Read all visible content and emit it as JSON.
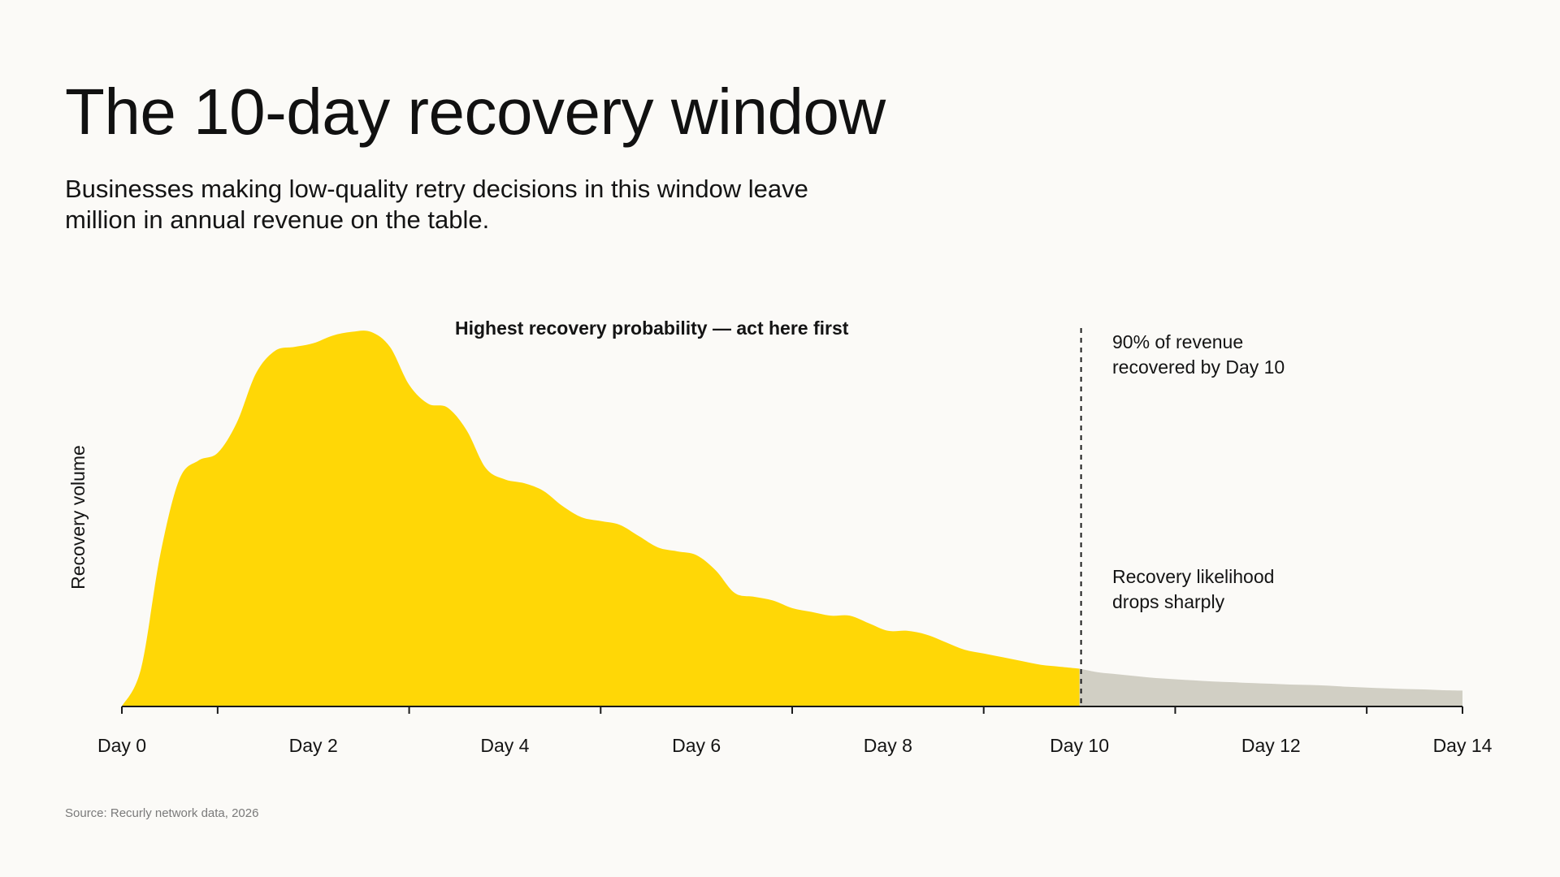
{
  "header": {
    "title": "The 10-day recovery window",
    "subtitle": "Businesses making low-quality retry decisions in this window leave million in annual revenue on the table."
  },
  "footer": {
    "source": "Source: Recurly network data, 2026"
  },
  "chart_data": {
    "type": "area",
    "title": "The 10-day recovery window",
    "xlabel": "",
    "ylabel": "Recovery volume",
    "x_ticks": [
      0,
      1,
      3,
      5,
      7,
      9,
      11,
      13,
      14
    ],
    "x_tick_labels": [
      {
        "x": 0,
        "label": "Day 0"
      },
      {
        "x": 2,
        "label": "Day 2"
      },
      {
        "x": 4,
        "label": "Day 4"
      },
      {
        "x": 6,
        "label": "Day 6"
      },
      {
        "x": 8,
        "label": "Day 8"
      },
      {
        "x": 10,
        "label": "Day 10"
      },
      {
        "x": 12,
        "label": "Day 12"
      },
      {
        "x": 14,
        "label": "Day 14"
      }
    ],
    "xlim": [
      0,
      14
    ],
    "ylim": [
      0,
      100
    ],
    "grid": false,
    "series": [
      {
        "x": [
          0,
          0.2,
          0.4,
          0.6,
          0.8,
          1.0,
          1.2,
          1.4,
          1.6,
          1.8,
          2.0,
          2.2,
          2.4,
          2.6,
          2.8,
          3.0,
          3.2,
          3.4,
          3.6,
          3.8,
          4.0,
          4.2,
          4.4,
          4.6,
          4.8,
          5.0,
          5.2,
          5.4,
          5.6,
          5.8,
          6.0,
          6.2,
          6.4,
          6.6,
          6.8,
          7.0,
          7.2,
          7.4,
          7.6,
          7.8,
          8.0,
          8.2,
          8.4,
          8.6,
          8.8,
          9.0,
          9.2,
          9.4,
          9.6,
          9.8,
          10.0,
          10.2,
          10.4,
          10.6,
          10.8,
          11.0,
          11.2,
          11.4,
          11.6,
          11.8,
          12.0,
          12.2,
          12.4,
          12.6,
          12.8,
          13.0,
          13.2,
          13.4,
          13.6,
          13.8,
          14.0
        ],
        "y": [
          0,
          10,
          40,
          60,
          65,
          67,
          75,
          88,
          94,
          95,
          96,
          98,
          99,
          99,
          95,
          85,
          80,
          79,
          73,
          63,
          60,
          59,
          57,
          53,
          50,
          49,
          48,
          45,
          42,
          41,
          40,
          36,
          30,
          29,
          28,
          26,
          25,
          24,
          24,
          22,
          20,
          20,
          19,
          17,
          15,
          14,
          13,
          12,
          11,
          10.5,
          10,
          9,
          8.5,
          8.0,
          7.5,
          7.2,
          6.9,
          6.6,
          6.4,
          6.2,
          6.0,
          5.8,
          5.7,
          5.5,
          5.2,
          5.0,
          4.8,
          4.6,
          4.5,
          4.3,
          4.2
        ]
      }
    ],
    "highlight_window_end": 10,
    "colors": {
      "primary_area": "#ffd706",
      "tail_area": "#d1cfc4",
      "axis": "#1a1a1a",
      "marker_line": "#1a1a1a"
    },
    "annotations": {
      "peak": "Highest recovery probability — act here first",
      "marker_line1": "90% of revenue",
      "marker_line2": "recovered by Day 10",
      "tail_line1": "Recovery likelihood",
      "tail_line2": "drops sharply"
    }
  }
}
